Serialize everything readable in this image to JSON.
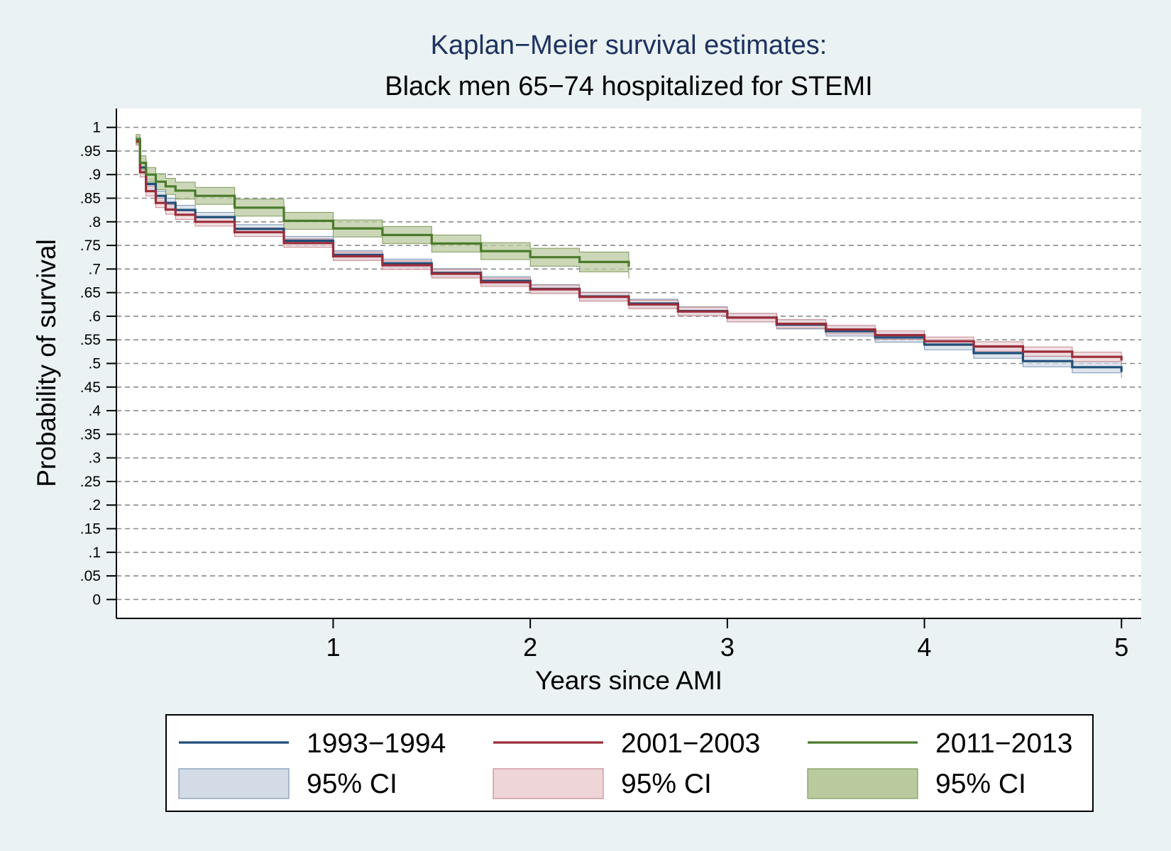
{
  "chart_data": {
    "type": "line",
    "title": "Kaplan−Meier survival estimates:",
    "subtitle": "Black men 65−74 hospitalized for STEMI",
    "xlabel": "Years since AMI",
    "ylabel": "Probability of survival",
    "xlim": [
      -0.1,
      5.1
    ],
    "ylim": [
      -0.04,
      1.04
    ],
    "x_ticks": [
      {
        "value": 1,
        "label": "1"
      },
      {
        "value": 2,
        "label": "2"
      },
      {
        "value": 3,
        "label": "3"
      },
      {
        "value": 4,
        "label": "4"
      },
      {
        "value": 5,
        "label": "5"
      }
    ],
    "y_ticks": [
      {
        "value": 1,
        "label": "1"
      },
      {
        "value": 0.95,
        "label": ".95"
      },
      {
        "value": 0.9,
        "label": ".9"
      },
      {
        "value": 0.85,
        "label": ".85"
      },
      {
        "value": 0.8,
        "label": ".8"
      },
      {
        "value": 0.75,
        "label": ".75"
      },
      {
        "value": 0.7,
        "label": ".7"
      },
      {
        "value": 0.65,
        "label": ".65"
      },
      {
        "value": 0.6,
        "label": ".6"
      },
      {
        "value": 0.55,
        "label": ".55"
      },
      {
        "value": 0.5,
        "label": ".5"
      },
      {
        "value": 0.45,
        "label": ".45"
      },
      {
        "value": 0.4,
        "label": ".4"
      },
      {
        "value": 0.35,
        "label": ".35"
      },
      {
        "value": 0.3,
        "label": ".3"
      },
      {
        "value": 0.25,
        "label": ".25"
      },
      {
        "value": 0.2,
        "label": ".2"
      },
      {
        "value": 0.15,
        "label": ".15"
      },
      {
        "value": 0.1,
        "label": ".1"
      },
      {
        "value": 0.05,
        "label": ".05"
      },
      {
        "value": 0,
        "label": "0"
      }
    ],
    "grid": true,
    "legend_position": "bottom",
    "series": [
      {
        "name": "1993−1994",
        "ci_label": "95% CI",
        "color": "#1f4e79",
        "ci_color": "#d2dbe6",
        "ci_border": "#7f97b5",
        "x": [
          0,
          0.02,
          0.05,
          0.1,
          0.15,
          0.2,
          0.3,
          0.5,
          0.75,
          1.0,
          1.25,
          1.5,
          1.75,
          2.0,
          2.25,
          2.5,
          2.75,
          3.0,
          3.25,
          3.5,
          3.75,
          4.0,
          4.25,
          4.5,
          4.75,
          5.0
        ],
        "y": [
          0.975,
          0.915,
          0.88,
          0.855,
          0.84,
          0.825,
          0.81,
          0.785,
          0.76,
          0.73,
          0.712,
          0.692,
          0.675,
          0.658,
          0.642,
          0.627,
          0.611,
          0.597,
          0.582,
          0.568,
          0.555,
          0.54,
          0.522,
          0.505,
          0.492,
          0.482
        ],
        "ci_lower": [
          0.97,
          0.905,
          0.87,
          0.845,
          0.83,
          0.815,
          0.8,
          0.776,
          0.751,
          0.721,
          0.703,
          0.683,
          0.666,
          0.649,
          0.633,
          0.618,
          0.602,
          0.588,
          0.573,
          0.558,
          0.545,
          0.529,
          0.511,
          0.493,
          0.48,
          0.469
        ],
        "ci_upper": [
          0.98,
          0.925,
          0.89,
          0.865,
          0.85,
          0.835,
          0.82,
          0.794,
          0.769,
          0.739,
          0.721,
          0.701,
          0.684,
          0.667,
          0.651,
          0.636,
          0.62,
          0.606,
          0.591,
          0.578,
          0.565,
          0.551,
          0.533,
          0.517,
          0.504,
          0.495
        ]
      },
      {
        "name": "2001−2003",
        "ci_label": "95% CI",
        "color": "#9b2d3a",
        "ci_color": "#eed6d8",
        "ci_border": "#c68890",
        "x": [
          0,
          0.02,
          0.05,
          0.1,
          0.15,
          0.2,
          0.3,
          0.5,
          0.75,
          1.0,
          1.25,
          1.5,
          1.75,
          2.0,
          2.25,
          2.5,
          2.75,
          3.0,
          3.25,
          3.5,
          3.75,
          4.0,
          4.25,
          4.5,
          4.75,
          5.0
        ],
        "y": [
          0.97,
          0.905,
          0.865,
          0.84,
          0.826,
          0.815,
          0.8,
          0.778,
          0.755,
          0.727,
          0.708,
          0.69,
          0.672,
          0.657,
          0.641,
          0.625,
          0.61,
          0.597,
          0.584,
          0.572,
          0.56,
          0.547,
          0.536,
          0.525,
          0.514,
          0.506
        ],
        "ci_lower": [
          0.962,
          0.895,
          0.855,
          0.83,
          0.816,
          0.805,
          0.791,
          0.769,
          0.746,
          0.718,
          0.699,
          0.681,
          0.663,
          0.648,
          0.632,
          0.616,
          0.601,
          0.588,
          0.575,
          0.563,
          0.551,
          0.538,
          0.526,
          0.515,
          0.504,
          0.495
        ],
        "ci_upper": [
          0.978,
          0.915,
          0.875,
          0.85,
          0.836,
          0.825,
          0.809,
          0.787,
          0.764,
          0.736,
          0.717,
          0.699,
          0.681,
          0.666,
          0.65,
          0.634,
          0.619,
          0.606,
          0.593,
          0.581,
          0.569,
          0.556,
          0.546,
          0.535,
          0.524,
          0.517
        ]
      },
      {
        "name": "2011−2013",
        "ci_label": "95% CI",
        "color": "#4a7a2a",
        "ci_color": "#b9ca9f",
        "ci_border": "#7e9a5e",
        "x": [
          0,
          0.02,
          0.05,
          0.1,
          0.15,
          0.2,
          0.3,
          0.5,
          0.75,
          1.0,
          1.25,
          1.5,
          1.75,
          2.0,
          2.25,
          2.5
        ],
        "y": [
          0.975,
          0.925,
          0.9,
          0.885,
          0.875,
          0.866,
          0.855,
          0.83,
          0.802,
          0.786,
          0.772,
          0.754,
          0.738,
          0.725,
          0.715,
          0.705
        ],
        "ci_lower": [
          0.965,
          0.91,
          0.884,
          0.868,
          0.858,
          0.848,
          0.837,
          0.812,
          0.784,
          0.768,
          0.754,
          0.736,
          0.72,
          0.706,
          0.694,
          0.68
        ],
        "ci_upper": [
          0.985,
          0.94,
          0.915,
          0.902,
          0.892,
          0.884,
          0.873,
          0.848,
          0.82,
          0.804,
          0.79,
          0.772,
          0.756,
          0.744,
          0.736,
          0.73
        ]
      }
    ]
  }
}
